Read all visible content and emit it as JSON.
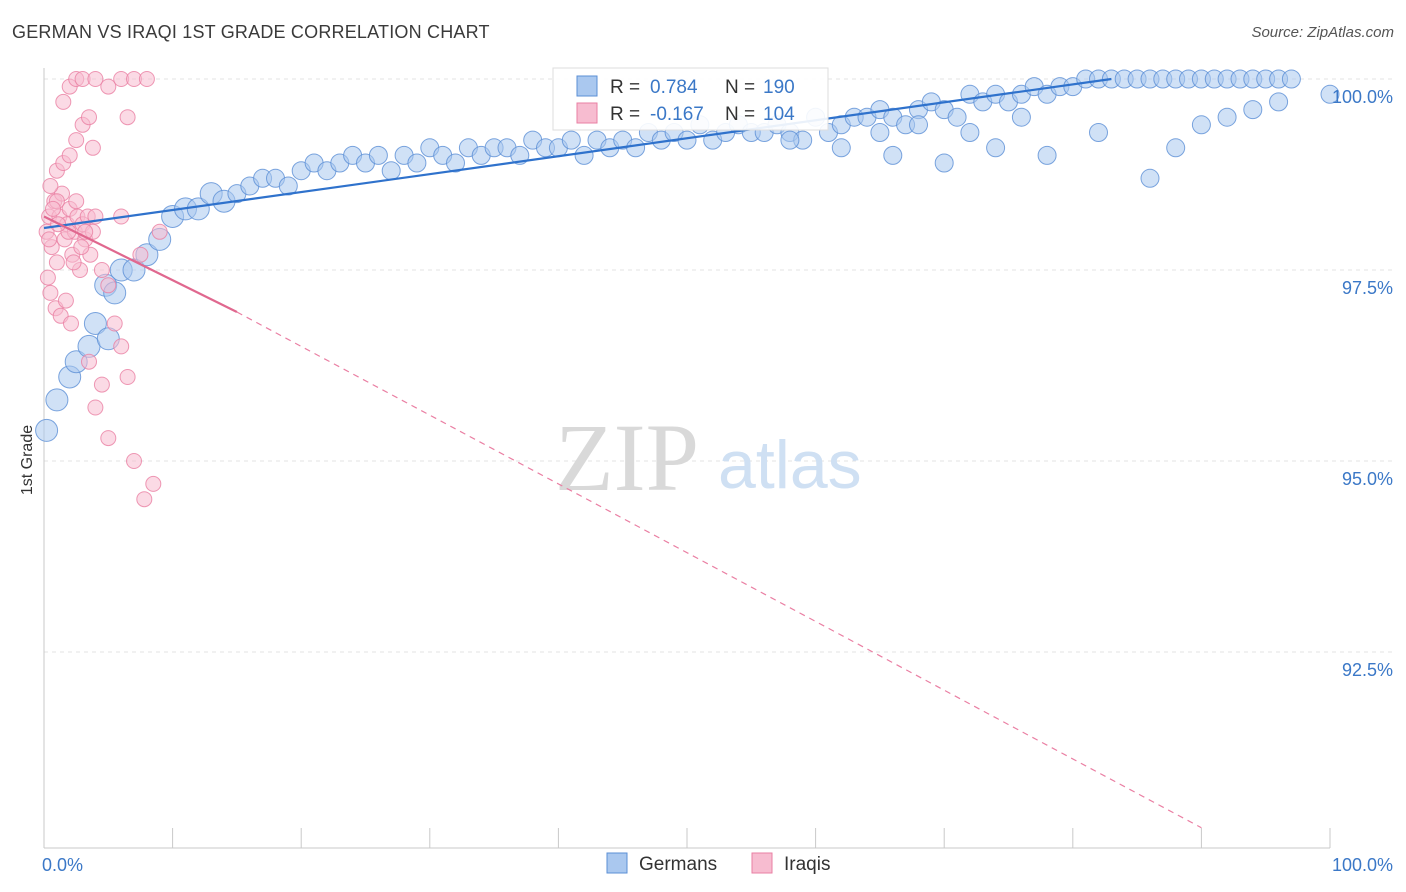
{
  "header": {
    "title": "GERMAN VS IRAQI 1ST GRADE CORRELATION CHART",
    "source": "Source: ZipAtlas.com"
  },
  "watermark": {
    "zip": "ZIP",
    "atlas": "atlas"
  },
  "stats_box": [
    {
      "series": "Germans",
      "r_label": "R =",
      "r_value": "0.784",
      "n_label": "N =",
      "n_value": "190",
      "fill": "#aac8ef",
      "stroke": "#5b8fd6"
    },
    {
      "series": "Iraqis",
      "r_label": "R =",
      "r_value": "-0.167",
      "n_label": "N =",
      "n_value": "104",
      "fill": "#f7bcd0",
      "stroke": "#ea7fa3"
    }
  ],
  "chart_data": {
    "type": "scatter",
    "title": "GERMAN VS IRAQI 1ST GRADE CORRELATION CHART",
    "xlabel": "",
    "ylabel": "1st Grade",
    "xlim": [
      0,
      100
    ],
    "ylim": [
      90.0,
      100.3
    ],
    "x_tick_labels": [
      "0.0%",
      "100.0%"
    ],
    "y_ticks": [
      {
        "value": 100.0,
        "label": "100.0%"
      },
      {
        "value": 97.5,
        "label": "97.5%"
      },
      {
        "value": 95.0,
        "label": "95.0%"
      },
      {
        "value": 92.5,
        "label": "92.5%"
      }
    ],
    "grid": true,
    "legend": [
      {
        "name": "Germans",
        "fill": "#aac8ef",
        "stroke": "#5b8fd6"
      },
      {
        "name": "Iraqis",
        "fill": "#f7bcd0",
        "stroke": "#ea7fa3"
      }
    ],
    "series": [
      {
        "name": "Germans",
        "fill": "#aac8ef",
        "stroke": "#5b8fd6",
        "trend": {
          "x0": 0,
          "y0": 98.05,
          "x1": 83,
          "y1": 100.0,
          "color": "#2f72cc",
          "style": "solid"
        },
        "points": [
          [
            0.2,
            95.4
          ],
          [
            1.0,
            95.8
          ],
          [
            2.0,
            96.1
          ],
          [
            2.5,
            96.3
          ],
          [
            3.5,
            96.5
          ],
          [
            4.0,
            96.8
          ],
          [
            5.0,
            96.6
          ],
          [
            4.8,
            97.3
          ],
          [
            5.5,
            97.2
          ],
          [
            6.0,
            97.5
          ],
          [
            7.0,
            97.5
          ],
          [
            8.0,
            97.7
          ],
          [
            9.0,
            97.9
          ],
          [
            10.0,
            98.2
          ],
          [
            11.0,
            98.3
          ],
          [
            12.0,
            98.3
          ],
          [
            13.0,
            98.5
          ],
          [
            14.0,
            98.4
          ],
          [
            15.0,
            98.5
          ],
          [
            16.0,
            98.6
          ],
          [
            17.0,
            98.7
          ],
          [
            18.0,
            98.7
          ],
          [
            19.0,
            98.6
          ],
          [
            20.0,
            98.8
          ],
          [
            21.0,
            98.9
          ],
          [
            22.0,
            98.8
          ],
          [
            23.0,
            98.9
          ],
          [
            24.0,
            99.0
          ],
          [
            25.0,
            98.9
          ],
          [
            26.0,
            99.0
          ],
          [
            27.0,
            98.8
          ],
          [
            28.0,
            99.0
          ],
          [
            29.0,
            98.9
          ],
          [
            30.0,
            99.1
          ],
          [
            31.0,
            99.0
          ],
          [
            32.0,
            98.9
          ],
          [
            33.0,
            99.1
          ],
          [
            34.0,
            99.0
          ],
          [
            35.0,
            99.1
          ],
          [
            36.0,
            99.1
          ],
          [
            37.0,
            99.0
          ],
          [
            38.0,
            99.2
          ],
          [
            39.0,
            99.1
          ],
          [
            40.0,
            99.1
          ],
          [
            41.0,
            99.2
          ],
          [
            42.0,
            99.0
          ],
          [
            43.0,
            99.2
          ],
          [
            44.0,
            99.1
          ],
          [
            45.0,
            99.2
          ],
          [
            46.0,
            99.1
          ],
          [
            47.0,
            99.3
          ],
          [
            48.0,
            99.2
          ],
          [
            49.0,
            99.3
          ],
          [
            50.0,
            99.2
          ],
          [
            51.0,
            99.4
          ],
          [
            52.0,
            99.2
          ],
          [
            53.0,
            99.3
          ],
          [
            54.0,
            99.4
          ],
          [
            55.0,
            99.3
          ],
          [
            56.0,
            99.3
          ],
          [
            57.0,
            99.4
          ],
          [
            58.0,
            99.3
          ],
          [
            59.0,
            99.2
          ],
          [
            60.0,
            99.5
          ],
          [
            61.0,
            99.3
          ],
          [
            62.0,
            99.4
          ],
          [
            63.0,
            99.5
          ],
          [
            64.0,
            99.5
          ],
          [
            65.0,
            99.6
          ],
          [
            66.0,
            99.5
          ],
          [
            67.0,
            99.4
          ],
          [
            68.0,
            99.6
          ],
          [
            69.0,
            99.7
          ],
          [
            70.0,
            99.6
          ],
          [
            71.0,
            99.5
          ],
          [
            72.0,
            99.8
          ],
          [
            73.0,
            99.7
          ],
          [
            74.0,
            99.8
          ],
          [
            75.0,
            99.7
          ],
          [
            76.0,
            99.8
          ],
          [
            77.0,
            99.9
          ],
          [
            78.0,
            99.8
          ],
          [
            79.0,
            99.9
          ],
          [
            80.0,
            99.9
          ],
          [
            81.0,
            100.0
          ],
          [
            82.0,
            100.0
          ],
          [
            83.0,
            100.0
          ],
          [
            84.0,
            100.0
          ],
          [
            85.0,
            100.0
          ],
          [
            86.0,
            100.0
          ],
          [
            87.0,
            100.0
          ],
          [
            88.0,
            100.0
          ],
          [
            89.0,
            100.0
          ],
          [
            90.0,
            100.0
          ],
          [
            91.0,
            100.0
          ],
          [
            92.0,
            100.0
          ],
          [
            93.0,
            100.0
          ],
          [
            94.0,
            100.0
          ],
          [
            95.0,
            100.0
          ],
          [
            96.0,
            100.0
          ],
          [
            97.0,
            100.0
          ],
          [
            100.0,
            99.8
          ],
          [
            58.0,
            99.2
          ],
          [
            62.0,
            99.1
          ],
          [
            66.0,
            99.0
          ],
          [
            70.0,
            98.9
          ],
          [
            74.0,
            99.1
          ],
          [
            78.0,
            99.0
          ],
          [
            82.0,
            99.3
          ],
          [
            86.0,
            98.7
          ],
          [
            88.0,
            99.1
          ],
          [
            90.0,
            99.4
          ],
          [
            92.0,
            99.5
          ],
          [
            94.0,
            99.6
          ],
          [
            96.0,
            99.7
          ],
          [
            65.0,
            99.3
          ],
          [
            68.0,
            99.4
          ],
          [
            72.0,
            99.3
          ],
          [
            76.0,
            99.5
          ]
        ]
      },
      {
        "name": "Iraqis",
        "fill": "#f7bcd0",
        "stroke": "#ea7fa3",
        "trend": {
          "x0": 0,
          "y0": 98.2,
          "x1": 15,
          "y1": 96.95,
          "color": "#e0688f",
          "style": "solid"
        },
        "trend_ext": {
          "x0": 15,
          "y0": 96.95,
          "x1": 90,
          "y1": 90.2,
          "color": "#ea7fa3",
          "style": "dashed"
        },
        "points": [
          [
            0.2,
            98.0
          ],
          [
            0.4,
            98.2
          ],
          [
            0.6,
            97.8
          ],
          [
            0.8,
            98.4
          ],
          [
            1.0,
            97.6
          ],
          [
            1.2,
            98.2
          ],
          [
            1.4,
            98.5
          ],
          [
            1.6,
            97.9
          ],
          [
            1.8,
            98.1
          ],
          [
            2.0,
            98.3
          ],
          [
            2.2,
            97.7
          ],
          [
            2.4,
            98.0
          ],
          [
            2.6,
            98.2
          ],
          [
            2.8,
            97.5
          ],
          [
            3.0,
            98.1
          ],
          [
            3.2,
            97.9
          ],
          [
            3.4,
            98.2
          ],
          [
            3.6,
            97.7
          ],
          [
            3.8,
            98.0
          ],
          [
            4.0,
            98.2
          ],
          [
            0.3,
            97.4
          ],
          [
            0.5,
            97.2
          ],
          [
            0.9,
            97.0
          ],
          [
            1.3,
            96.9
          ],
          [
            1.7,
            97.1
          ],
          [
            2.1,
            96.8
          ],
          [
            0.5,
            98.6
          ],
          [
            1.0,
            98.8
          ],
          [
            1.5,
            98.9
          ],
          [
            2.0,
            99.0
          ],
          [
            2.5,
            99.2
          ],
          [
            3.0,
            99.4
          ],
          [
            3.5,
            99.5
          ],
          [
            1.5,
            99.7
          ],
          [
            2.0,
            99.9
          ],
          [
            2.5,
            100.0
          ],
          [
            3.0,
            100.0
          ],
          [
            4.0,
            100.0
          ],
          [
            5.0,
            99.9
          ],
          [
            6.0,
            100.0
          ],
          [
            7.0,
            100.0
          ],
          [
            8.0,
            100.0
          ],
          [
            6.5,
            99.5
          ],
          [
            3.8,
            99.1
          ],
          [
            4.5,
            97.5
          ],
          [
            5.0,
            97.3
          ],
          [
            5.5,
            96.8
          ],
          [
            6.0,
            96.5
          ],
          [
            6.5,
            96.1
          ],
          [
            4.5,
            96.0
          ],
          [
            3.5,
            96.3
          ],
          [
            4.0,
            95.7
          ],
          [
            5.0,
            95.3
          ],
          [
            7.0,
            95.0
          ],
          [
            8.5,
            94.7
          ],
          [
            7.8,
            94.5
          ],
          [
            6.0,
            98.2
          ],
          [
            7.5,
            97.7
          ],
          [
            9.0,
            98.0
          ],
          [
            1.0,
            98.4
          ],
          [
            2.5,
            98.4
          ],
          [
            3.2,
            98.0
          ],
          [
            0.7,
            98.3
          ],
          [
            1.9,
            98.0
          ],
          [
            2.9,
            97.8
          ],
          [
            1.1,
            98.1
          ],
          [
            2.3,
            97.6
          ],
          [
            0.4,
            97.9
          ]
        ]
      }
    ]
  }
}
